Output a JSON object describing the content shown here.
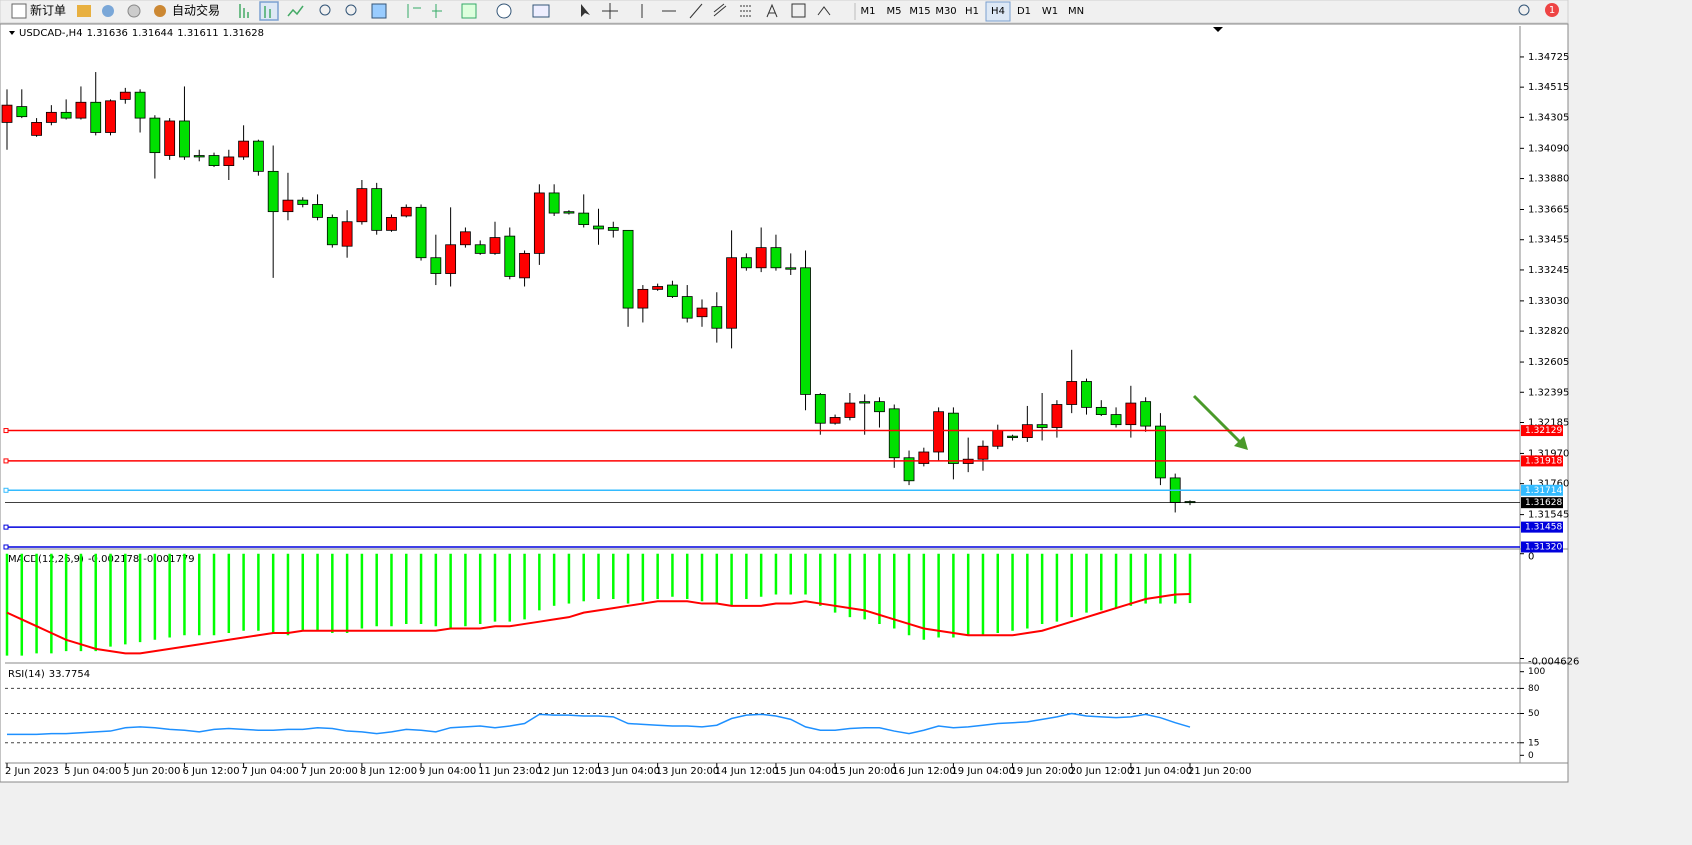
{
  "toolbar": {
    "new_order": "新订单",
    "auto_trading": "自动交易",
    "timeframes": [
      "M1",
      "M5",
      "M15",
      "M30",
      "H1",
      "H4",
      "D1",
      "W1",
      "MN"
    ],
    "active_timeframe": "H4",
    "notifications": 1
  },
  "chart_data": [
    {
      "type": "candlestick",
      "symbol": "USDCAD-,H4",
      "bull_color": "#ff0000",
      "bear_color": "#00e000",
      "categories": [
        "2 Jun 2023",
        null,
        null,
        null,
        "5 Jun 04:00",
        null,
        null,
        null,
        "5 Jun 20:00",
        null,
        null,
        null,
        "6 Jun 12:00",
        null,
        null,
        null,
        "7 Jun 04:00",
        null,
        null,
        null,
        "7 Jun 20:00",
        null,
        null,
        null,
        "8 Jun 12:00",
        null,
        null,
        null,
        "9 Jun 04:00",
        null,
        null,
        null,
        "11 Jun 23:00",
        null,
        null,
        null,
        "12 Jun 12:00",
        null,
        null,
        null,
        "13 Jun 04:00",
        null,
        null,
        null,
        "13 Jun 20:00",
        null,
        null,
        null,
        "14 Jun 12:00",
        null,
        null,
        null,
        "15 Jun 04:00",
        null,
        null,
        null,
        "15 Jun 20:00",
        null,
        null,
        null,
        "16 Jun 12:00",
        null,
        null,
        null,
        "19 Jun 04:00",
        null,
        null,
        null,
        "19 Jun 20:00",
        null,
        null,
        null,
        "20 Jun 12:00",
        null,
        null,
        null,
        "21 Jun 04:00",
        null,
        null,
        null,
        "21 Jun 20:00"
      ],
      "open": [
        1.3427,
        1.3438,
        1.3418,
        1.3427,
        1.3434,
        1.343,
        1.3441,
        1.342,
        1.3443,
        1.3448,
        1.343,
        1.3404,
        1.3428,
        1.3404,
        1.3404,
        1.3397,
        1.3403,
        1.3414,
        1.3393,
        1.3365,
        1.3373,
        1.337,
        1.3361,
        1.3341,
        1.3358,
        1.3381,
        1.3352,
        1.3362,
        1.3368,
        1.3333,
        1.3322,
        1.3342,
        1.3342,
        1.3336,
        1.3348,
        1.3319,
        1.3336,
        1.3378,
        1.3365,
        1.3364,
        1.3355,
        1.3354,
        1.3352,
        1.3298,
        1.3311,
        1.3314,
        1.3306,
        1.3292,
        1.3299,
        1.3284,
        1.3333,
        1.3326,
        1.334,
        1.3326,
        1.3326,
        1.3238,
        1.3218,
        1.3222,
        1.3233,
        1.3233,
        1.3228,
        1.3194,
        1.319,
        1.3198,
        1.3225,
        1.319,
        1.3193,
        1.3202,
        1.3209,
        1.3208,
        1.3217,
        1.3215,
        1.3231,
        1.3247,
        1.3229,
        1.3224,
        1.3217,
        1.3233,
        1.3216,
        1.318,
        1.31636
      ],
      "high": [
        1.345,
        1.345,
        1.343,
        1.3439,
        1.3443,
        1.3452,
        1.3462,
        1.3443,
        1.3451,
        1.345,
        1.3432,
        1.343,
        1.3452,
        1.3408,
        1.3406,
        1.3408,
        1.3425,
        1.3415,
        1.3411,
        1.3392,
        1.3375,
        1.3377,
        1.3363,
        1.3366,
        1.3387,
        1.3385,
        1.3363,
        1.337,
        1.337,
        1.3349,
        1.3368,
        1.3354,
        1.3345,
        1.3358,
        1.3354,
        1.3338,
        1.3384,
        1.3384,
        1.3366,
        1.3377,
        1.3367,
        1.3358,
        1.3352,
        1.3314,
        1.3315,
        1.3317,
        1.3314,
        1.3304,
        1.3309,
        1.3352,
        1.3336,
        1.3354,
        1.3349,
        1.3336,
        1.3338,
        1.3239,
        1.3224,
        1.3239,
        1.3238,
        1.3236,
        1.3231,
        1.3199,
        1.3201,
        1.3229,
        1.3229,
        1.3208,
        1.3206,
        1.3217,
        1.321,
        1.323,
        1.3239,
        1.3234,
        1.3269,
        1.3249,
        1.3234,
        1.3229,
        1.3244,
        1.3236,
        1.3225,
        1.3183,
        1.31644
      ],
      "low": [
        1.3408,
        1.343,
        1.3417,
        1.3425,
        1.3429,
        1.3429,
        1.3418,
        1.3418,
        1.344,
        1.342,
        1.3388,
        1.3401,
        1.3401,
        1.34,
        1.3396,
        1.3387,
        1.3401,
        1.339,
        1.3319,
        1.3359,
        1.3368,
        1.3359,
        1.334,
        1.3333,
        1.3356,
        1.3349,
        1.3351,
        1.3361,
        1.3331,
        1.3314,
        1.3313,
        1.334,
        1.3335,
        1.3335,
        1.3318,
        1.3313,
        1.3328,
        1.3362,
        1.3363,
        1.3354,
        1.3342,
        1.3347,
        1.3285,
        1.3288,
        1.331,
        1.3305,
        1.3288,
        1.3285,
        1.3274,
        1.327,
        1.3324,
        1.3323,
        1.3324,
        1.3321,
        1.3227,
        1.321,
        1.3217,
        1.322,
        1.321,
        1.3215,
        1.3187,
        1.3175,
        1.3188,
        1.3192,
        1.3179,
        1.3184,
        1.3185,
        1.32,
        1.3206,
        1.3205,
        1.3206,
        1.3208,
        1.3225,
        1.3224,
        1.3223,
        1.3215,
        1.3208,
        1.3212,
        1.3175,
        1.3156,
        1.31611
      ],
      "close": [
        1.3439,
        1.3431,
        1.3427,
        1.3434,
        1.343,
        1.3441,
        1.342,
        1.3442,
        1.3448,
        1.343,
        1.3406,
        1.3428,
        1.3403,
        1.3403,
        1.3397,
        1.3403,
        1.3414,
        1.3393,
        1.3365,
        1.3373,
        1.337,
        1.3361,
        1.3342,
        1.3358,
        1.3381,
        1.3352,
        1.3361,
        1.3368,
        1.3333,
        1.3322,
        1.3342,
        1.3351,
        1.3336,
        1.3347,
        1.332,
        1.3336,
        1.3378,
        1.3364,
        1.3364,
        1.3356,
        1.3353,
        1.3352,
        1.3298,
        1.3311,
        1.3313,
        1.3306,
        1.3291,
        1.3298,
        1.3284,
        1.3333,
        1.3326,
        1.334,
        1.3326,
        1.3325,
        1.3238,
        1.3218,
        1.3222,
        1.3232,
        1.3232,
        1.3226,
        1.3194,
        1.3178,
        1.3198,
        1.3226,
        1.319,
        1.3193,
        1.3202,
        1.3213,
        1.3208,
        1.3217,
        1.3215,
        1.3231,
        1.3247,
        1.3229,
        1.3224,
        1.3217,
        1.3232,
        1.3216,
        1.318,
        1.3163,
        1.31628
      ],
      "ylim": [
        1.31306,
        1.34933
      ],
      "yticks": [
        1.34725,
        1.34515,
        1.34305,
        {
          "value": 1.3409,
          "label": "1.34090"
        },
        {
          "value": 1.3388,
          "label": "1.33880"
        },
        1.33665,
        1.33455,
        1.33245,
        {
          "value": 1.3303,
          "label": "1.33030"
        },
        {
          "value": 1.3282,
          "label": "1.32820"
        },
        1.32605,
        1.32395,
        1.32185,
        {
          "value": 1.3197,
          "label": "1.31970"
        },
        {
          "value": 1.3176,
          "label": "1.31760"
        },
        1.31545
      ],
      "levels": [
        {
          "value": 1.32129,
          "color": "#ff0000"
        },
        {
          "value": 1.31918,
          "color": "#ff0000"
        },
        {
          "value": 1.31714,
          "color": "#33bbff"
        },
        {
          "value": 1.31458,
          "color": "#0000dd"
        },
        {
          "value": 1.3132,
          "label": "1.31320",
          "color": "#0000dd"
        }
      ]
    },
    {
      "type": "macd",
      "label": "MACD(12,26,9)",
      "histogram": {
        "color": "#00ff00",
        "values": [
          -0.0045,
          -0.0045,
          -0.0044,
          -0.0044,
          -0.0043,
          -0.0043,
          -0.0043,
          -0.0041,
          -0.004,
          -0.0039,
          -0.0038,
          -0.0037,
          -0.0036,
          -0.0036,
          -0.0036,
          -0.0035,
          -0.0034,
          -0.0034,
          -0.0035,
          -0.0036,
          -0.0034,
          -0.0034,
          -0.0035,
          -0.0035,
          -0.0033,
          -0.0032,
          -0.0032,
          -0.0031,
          -0.0031,
          -0.0032,
          -0.0033,
          -0.0032,
          -0.0031,
          -0.003,
          -0.003,
          -0.0029,
          -0.0025,
          -0.0023,
          -0.0022,
          -0.0021,
          -0.002,
          -0.002,
          -0.0022,
          -0.0021,
          -0.002,
          -0.0019,
          -0.002,
          -0.0021,
          -0.0022,
          -0.0023,
          -0.002,
          -0.0019,
          -0.0018,
          -0.0018,
          -0.0018,
          -0.0023,
          -0.0026,
          -0.0028,
          -0.0029,
          -0.0031,
          -0.0033,
          -0.0036,
          -0.0038,
          -0.0037,
          -0.0037,
          -0.0036,
          -0.0036,
          -0.0035,
          -0.0034,
          -0.0033,
          -0.0031,
          -0.003,
          -0.0028,
          -0.0026,
          -0.0025,
          -0.0024,
          -0.0023,
          -0.0022,
          -0.0022,
          -0.0022,
          -0.002178
        ]
      },
      "signal": {
        "color": "#ff0000",
        "values": [
          -0.0026,
          -0.0029,
          -0.0032,
          -0.0035,
          -0.0038,
          -0.004,
          -0.0042,
          -0.0043,
          -0.0044,
          -0.0044,
          -0.0043,
          -0.0042,
          -0.0041,
          -0.004,
          -0.0039,
          -0.0038,
          -0.0037,
          -0.0036,
          -0.0035,
          -0.0035,
          -0.0034,
          -0.0034,
          -0.0034,
          -0.0034,
          -0.0034,
          -0.0034,
          -0.0034,
          -0.0034,
          -0.0034,
          -0.0034,
          -0.0033,
          -0.0033,
          -0.0033,
          -0.0032,
          -0.0032,
          -0.0031,
          -0.003,
          -0.0029,
          -0.0028,
          -0.0026,
          -0.0025,
          -0.0024,
          -0.0023,
          -0.0022,
          -0.0021,
          -0.0021,
          -0.0021,
          -0.0022,
          -0.0022,
          -0.0023,
          -0.0023,
          -0.0023,
          -0.0022,
          -0.0022,
          -0.0021,
          -0.0022,
          -0.0023,
          -0.0024,
          -0.0025,
          -0.0027,
          -0.0029,
          -0.0031,
          -0.0033,
          -0.0034,
          -0.0035,
          -0.0036,
          -0.0036,
          -0.0036,
          -0.0036,
          -0.0035,
          -0.0034,
          -0.0032,
          -0.003,
          -0.0028,
          -0.0026,
          -0.0024,
          -0.0022,
          -0.002,
          -0.0019,
          -0.0018,
          -0.001779
        ]
      },
      "ylim": [
        -0.00478,
        0.00012
      ],
      "yticks": [
        0,
        -0.004626
      ]
    },
    {
      "type": "rsi",
      "label": "RSI(14)",
      "color": "#1e90ff",
      "values": [
        25,
        25,
        25,
        26,
        26,
        27,
        28,
        29,
        33,
        34,
        33,
        31,
        30,
        28,
        31,
        32,
        31,
        30,
        30,
        31,
        31,
        33,
        32,
        29,
        28,
        26,
        28,
        31,
        30,
        28,
        33,
        34,
        35,
        33,
        35,
        38,
        49,
        48,
        48,
        47,
        47,
        46,
        38,
        37,
        36,
        35,
        35,
        34,
        36,
        44,
        48,
        49,
        47,
        43,
        34,
        30,
        30,
        32,
        33,
        33,
        29,
        26,
        30,
        35,
        33,
        34,
        36,
        38,
        39,
        40,
        43,
        46,
        50,
        47,
        46,
        45,
        46,
        49,
        45,
        39,
        33.7754
      ],
      "ylim": [
        -8,
        108
      ],
      "yticks": [
        100,
        80,
        50,
        15,
        0
      ]
    }
  ]
}
